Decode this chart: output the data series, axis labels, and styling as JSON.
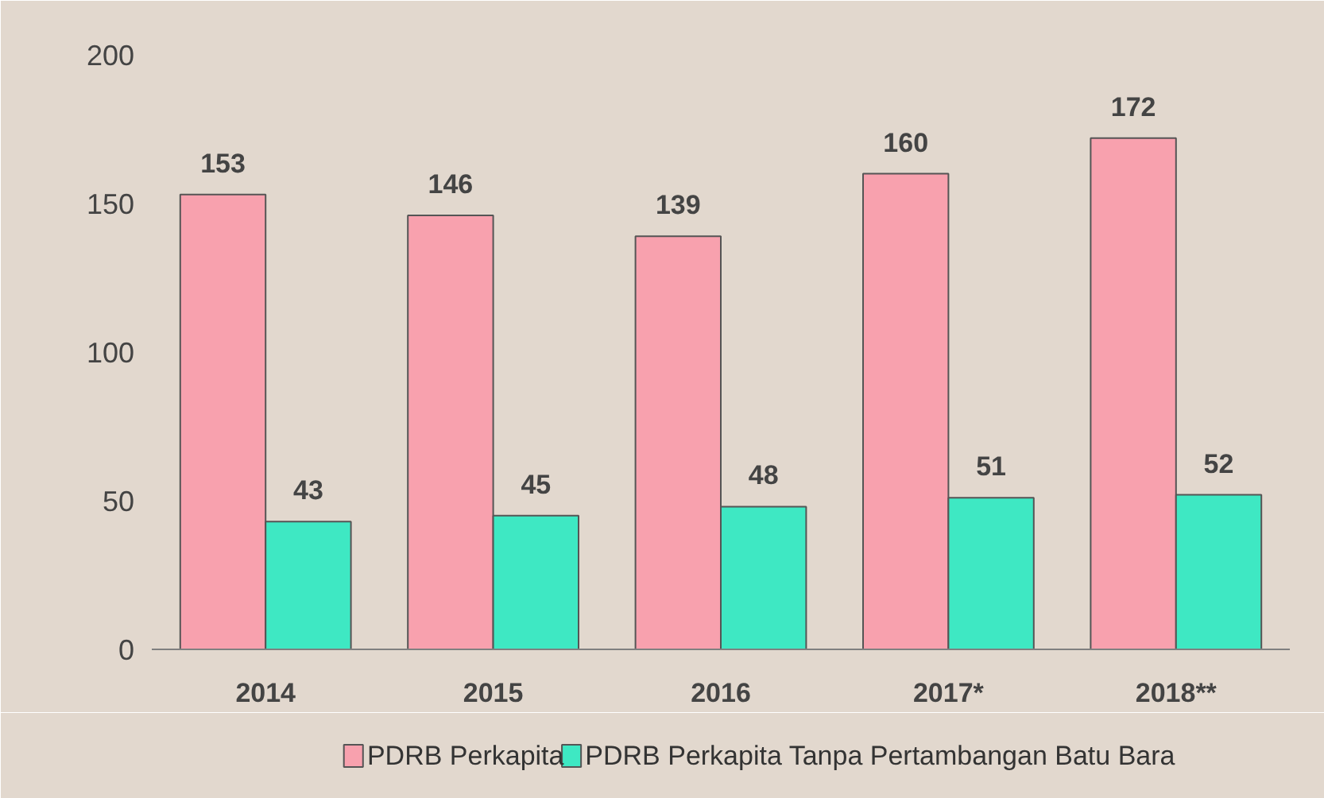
{
  "chart_data": {
    "type": "bar",
    "categories": [
      "2014",
      "2015",
      "2016",
      "2017*",
      "2018**"
    ],
    "series": [
      {
        "name": "PDRB Perkapita",
        "color": "#f8a1ae",
        "values": [
          153,
          146,
          139,
          160,
          172
        ]
      },
      {
        "name": "PDRB Perkapita Tanpa Pertambangan Batu Bara",
        "color": "#3ee8c3",
        "values": [
          43,
          45,
          48,
          51,
          52
        ]
      }
    ],
    "ylim": [
      0,
      200
    ],
    "yticks": [
      0,
      50,
      100,
      150,
      200
    ],
    "grid": false,
    "legend": "bottom",
    "data_labels": true
  }
}
